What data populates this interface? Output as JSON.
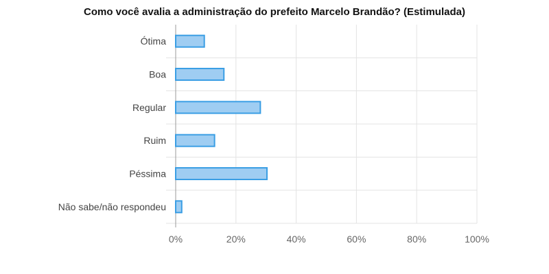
{
  "chart_data": {
    "type": "bar",
    "orientation": "horizontal",
    "title": "Como você avalia a administração do prefeito Marcelo Brandão? (Estimulada)",
    "categories": [
      "Ótima",
      "Boa",
      "Regular",
      "Ruim",
      "Péssima",
      "Não sabe/não respondeu"
    ],
    "values": [
      9.5,
      16,
      28.1,
      12.9,
      30.3,
      2
    ],
    "unit": "%",
    "xlim": [
      0,
      100
    ],
    "xticks": [
      "0%",
      "20%",
      "40%",
      "60%",
      "80%",
      "100%"
    ],
    "grid": true,
    "legend": "none",
    "colors": {
      "bar_fill": "#9fcdf2",
      "bar_stroke": "#3a9ee4",
      "grid": "#e3e3e3",
      "axis": "#999999"
    }
  }
}
